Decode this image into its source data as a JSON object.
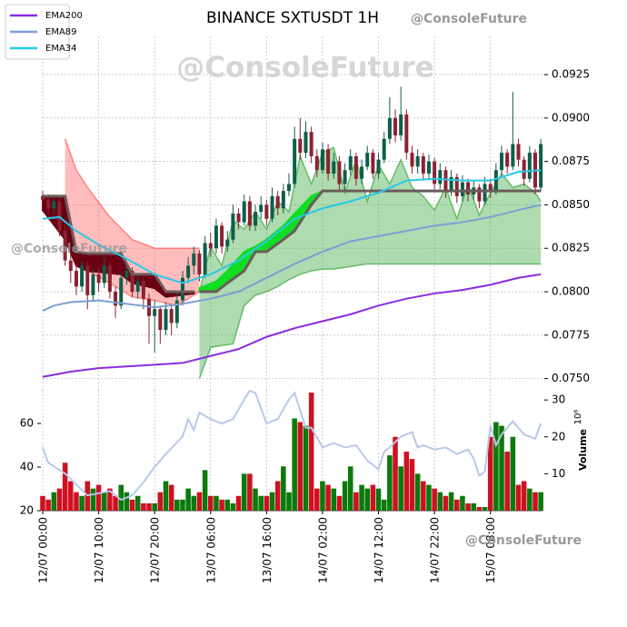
{
  "chart_data": {
    "type": "candlestick",
    "title": "BINANCE SXTUSDT 1H",
    "watermark": "@ConsoleFuture",
    "xlim": [
      0,
      89.3
    ],
    "xticks": [
      {
        "value": 0,
        "label": "12/07 00:00"
      },
      {
        "value": 10,
        "label": "12/07 10:00"
      },
      {
        "value": 20,
        "label": "12/07 20:00"
      },
      {
        "value": 30,
        "label": "13/07 06:00"
      },
      {
        "value": 40,
        "label": "13/07 16:00"
      },
      {
        "value": 50,
        "label": "14/07 02:00"
      },
      {
        "value": 60,
        "label": "14/07 12:00"
      },
      {
        "value": 70,
        "label": "14/07 22:00"
      },
      {
        "value": 80,
        "label": "15/07 08:00"
      }
    ],
    "ylim": [
      0.0743,
      0.0947
    ],
    "yticks": [
      {
        "value": 0.075,
        "label": "0.0750"
      },
      0.0775,
      {
        "value": 0.08,
        "label": "0.0800"
      },
      0.0825,
      {
        "value": 0.085,
        "label": "0.0850"
      },
      0.0875,
      {
        "value": 0.09,
        "label": "0.0900"
      },
      0.0925
    ],
    "grid": true,
    "legend": "upper left",
    "up_color": "#0e5e4a",
    "down_color": "#8b2232",
    "open": [
      0.0855,
      0.0853,
      0.0848,
      0.0852,
      0.0835,
      0.0818,
      0.0812,
      0.0803,
      0.0815,
      0.0798,
      0.081,
      0.0805,
      0.0815,
      0.08,
      0.0792,
      0.0808,
      0.0812,
      0.08,
      0.0806,
      0.0796,
      0.0786,
      0.079,
      0.0778,
      0.079,
      0.0782,
      0.0795,
      0.0808,
      0.0815,
      0.0822,
      0.081,
      0.0828,
      0.0825,
      0.0838,
      0.0826,
      0.083,
      0.0845,
      0.084,
      0.0852,
      0.0838,
      0.0846,
      0.085,
      0.0842,
      0.0855,
      0.0848,
      0.0858,
      0.0862,
      0.0888,
      0.088,
      0.0892,
      0.0878,
      0.087,
      0.0882,
      0.0868,
      0.0875,
      0.0862,
      0.087,
      0.0878,
      0.0865,
      0.0872,
      0.088,
      0.0868,
      0.0876,
      0.0888,
      0.09,
      0.089,
      0.0902,
      0.088,
      0.0872,
      0.0878,
      0.0868,
      0.0875,
      0.0862,
      0.087,
      0.0858,
      0.0866,
      0.0855,
      0.0863,
      0.0856,
      0.086,
      0.0852,
      0.0862,
      0.0858,
      0.087,
      0.088,
      0.0872,
      0.0885,
      0.0876,
      0.0865,
      0.088,
      0.086
    ],
    "high": [
      0.0858,
      0.0856,
      0.0855,
      0.0854,
      0.0838,
      0.0822,
      0.0816,
      0.0818,
      0.0817,
      0.0813,
      0.0814,
      0.082,
      0.0817,
      0.0803,
      0.0811,
      0.0816,
      0.0814,
      0.0809,
      0.0808,
      0.0799,
      0.0795,
      0.0792,
      0.0794,
      0.0793,
      0.08,
      0.0812,
      0.082,
      0.0826,
      0.0824,
      0.0832,
      0.0834,
      0.0842,
      0.084,
      0.0835,
      0.085,
      0.0848,
      0.0856,
      0.0855,
      0.085,
      0.0855,
      0.0853,
      0.086,
      0.0858,
      0.0862,
      0.0868,
      0.0895,
      0.09,
      0.0898,
      0.0895,
      0.0882,
      0.0886,
      0.0885,
      0.088,
      0.0878,
      0.0874,
      0.0882,
      0.088,
      0.0876,
      0.0884,
      0.0882,
      0.088,
      0.0892,
      0.0912,
      0.0905,
      0.0918,
      0.0905,
      0.0884,
      0.0882,
      0.088,
      0.0879,
      0.0877,
      0.0874,
      0.0872,
      0.087,
      0.0868,
      0.0867,
      0.0865,
      0.0864,
      0.0862,
      0.0866,
      0.0865,
      0.0874,
      0.0884,
      0.0882,
      0.0915,
      0.0888,
      0.0878,
      0.0884,
      0.0882,
      0.0888
    ],
    "low": [
      0.085,
      0.0845,
      0.0845,
      0.0832,
      0.0815,
      0.0805,
      0.0798,
      0.08,
      0.079,
      0.0795,
      0.08,
      0.0802,
      0.0796,
      0.0785,
      0.079,
      0.0804,
      0.0797,
      0.0796,
      0.079,
      0.077,
      0.0765,
      0.077,
      0.0775,
      0.0775,
      0.0779,
      0.0792,
      0.0805,
      0.081,
      0.0806,
      0.0808,
      0.082,
      0.0822,
      0.0822,
      0.0823,
      0.0828,
      0.0836,
      0.0838,
      0.0835,
      0.0835,
      0.0842,
      0.0838,
      0.084,
      0.0844,
      0.0845,
      0.0855,
      0.086,
      0.0876,
      0.0877,
      0.0874,
      0.0866,
      0.0868,
      0.0864,
      0.0865,
      0.0858,
      0.0858,
      0.0867,
      0.0861,
      0.0862,
      0.087,
      0.0865,
      0.0865,
      0.0874,
      0.0885,
      0.0886,
      0.0887,
      0.0876,
      0.0868,
      0.0868,
      0.0864,
      0.0865,
      0.0858,
      0.0859,
      0.0854,
      0.0855,
      0.0851,
      0.0852,
      0.0852,
      0.0853,
      0.0848,
      0.085,
      0.0854,
      0.0856,
      0.0867,
      0.0868,
      0.087,
      0.0872,
      0.0861,
      0.0863,
      0.0856,
      0.0858
    ],
    "close": [
      0.0853,
      0.0848,
      0.0852,
      0.0835,
      0.0818,
      0.0812,
      0.0803,
      0.0815,
      0.0798,
      0.081,
      0.0805,
      0.0815,
      0.08,
      0.0792,
      0.0808,
      0.0812,
      0.08,
      0.0806,
      0.0796,
      0.0786,
      0.079,
      0.0778,
      0.079,
      0.0782,
      0.0795,
      0.0808,
      0.0815,
      0.0822,
      0.081,
      0.0828,
      0.0825,
      0.0838,
      0.0826,
      0.083,
      0.0845,
      0.084,
      0.0852,
      0.0838,
      0.0846,
      0.085,
      0.0842,
      0.0855,
      0.0848,
      0.0858,
      0.0862,
      0.0888,
      0.088,
      0.0892,
      0.0878,
      0.087,
      0.0882,
      0.0868,
      0.0875,
      0.0862,
      0.087,
      0.0878,
      0.0865,
      0.0872,
      0.088,
      0.0868,
      0.0876,
      0.0888,
      0.09,
      0.089,
      0.0902,
      0.088,
      0.0872,
      0.0878,
      0.0868,
      0.0875,
      0.0862,
      0.087,
      0.0858,
      0.0866,
      0.0855,
      0.0863,
      0.0856,
      0.086,
      0.0852,
      0.0862,
      0.0858,
      0.087,
      0.088,
      0.0872,
      0.0885,
      0.0876,
      0.0865,
      0.088,
      0.086,
      0.0885
    ],
    "series": [
      {
        "name": "EMA200",
        "color": "#8a2be2",
        "x": [
          0,
          5,
          10,
          20,
          25,
          30,
          35,
          40,
          45,
          50,
          55,
          60,
          65,
          70,
          75,
          80,
          85,
          89
        ],
        "values": [
          0.0751,
          0.0754,
          0.0756,
          0.0758,
          0.0759,
          0.0763,
          0.0767,
          0.0774,
          0.0779,
          0.0783,
          0.0787,
          0.0792,
          0.0796,
          0.0799,
          0.0801,
          0.0804,
          0.0808,
          0.081
        ]
      },
      {
        "name": "EMA89",
        "color": "#7b9fd4",
        "x": [
          0,
          2,
          5,
          10,
          15,
          20,
          25,
          30,
          35,
          40,
          45,
          50,
          55,
          60,
          65,
          70,
          75,
          80,
          85,
          89
        ],
        "values": [
          0.0789,
          0.0792,
          0.0794,
          0.0795,
          0.0793,
          0.0791,
          0.0793,
          0.0796,
          0.08,
          0.0808,
          0.0816,
          0.0823,
          0.0829,
          0.0832,
          0.0835,
          0.0838,
          0.084,
          0.0843,
          0.0847,
          0.085
        ]
      },
      {
        "name": "EMA34",
        "color": "#29c8e6",
        "x": [
          0,
          3,
          6,
          10,
          15,
          20,
          25,
          30,
          35,
          40,
          45,
          50,
          55,
          60,
          65,
          70,
          75,
          80,
          85,
          89
        ],
        "values": [
          0.0842,
          0.0843,
          0.0835,
          0.0827,
          0.0819,
          0.081,
          0.0805,
          0.081,
          0.0818,
          0.0829,
          0.0842,
          0.0848,
          0.0852,
          0.0857,
          0.0864,
          0.0865,
          0.0864,
          0.0864,
          0.0869,
          0.087
        ]
      }
    ],
    "cloud": [
      {
        "color": "#ff6b6b",
        "x": [
          4,
          6,
          8,
          12,
          16,
          20,
          24,
          28
        ],
        "upper": [
          0.0888,
          0.087,
          0.086,
          0.0843,
          0.083,
          0.0825,
          0.0825,
          0.0825
        ],
        "lower": [
          0.0846,
          0.0821,
          0.0812,
          0.0805,
          0.0797,
          0.0795,
          0.0792,
          0.08
        ]
      },
      {
        "color": "#4caf50",
        "x": [
          28,
          30,
          32,
          34,
          36,
          38,
          40,
          42,
          44,
          46,
          48,
          50,
          52,
          54,
          56,
          58,
          60,
          62,
          64,
          66,
          68,
          70,
          72,
          74,
          76,
          78,
          80,
          82,
          84,
          86,
          88,
          89
        ],
        "upper": [
          0.08,
          0.0826,
          0.0815,
          0.0841,
          0.0836,
          0.0846,
          0.0836,
          0.0852,
          0.0846,
          0.0878,
          0.0862,
          0.088,
          0.0883,
          0.0857,
          0.0876,
          0.0852,
          0.0873,
          0.0862,
          0.0876,
          0.086,
          0.0855,
          0.0847,
          0.086,
          0.0842,
          0.0862,
          0.0844,
          0.0857,
          0.0868,
          0.086,
          0.0862,
          0.0857,
          0.0852
        ],
        "lower": [
          0.075,
          0.0768,
          0.0769,
          0.077,
          0.0792,
          0.0798,
          0.08,
          0.0803,
          0.0807,
          0.081,
          0.0812,
          0.0813,
          0.0813,
          0.0814,
          0.0815,
          0.0816,
          0.0816,
          0.0816,
          0.0816,
          0.0816,
          0.0816,
          0.0816,
          0.0816,
          0.0816,
          0.0816,
          0.0816,
          0.0816,
          0.0816,
          0.0816,
          0.0816,
          0.0816,
          0.0816
        ]
      }
    ],
    "trend": [
      {
        "color": "#6b0012",
        "x": [
          0,
          4,
          6,
          8,
          14,
          16,
          20,
          22,
          27
        ],
        "line": [
          0.0855,
          0.0855,
          0.0823,
          0.0822,
          0.0822,
          0.081,
          0.081,
          0.08,
          0.08
        ],
        "edge": [
          0.0847,
          0.083,
          0.0815,
          0.0812,
          0.081,
          0.0805,
          0.0802,
          0.0797,
          0.0799
        ]
      },
      {
        "color": "#11dd22",
        "x": [
          28,
          31,
          33,
          36,
          38,
          40,
          43,
          45,
          48,
          50,
          89
        ],
        "line": [
          0.08,
          0.08,
          0.0805,
          0.0812,
          0.0823,
          0.0823,
          0.083,
          0.0835,
          0.085,
          0.0858,
          0.0858
        ],
        "edge": [
          0.0802,
          0.0806,
          0.0812,
          0.0823,
          0.0826,
          0.083,
          0.0838,
          0.0845,
          0.0855,
          0.0858,
          0.0858
        ]
      }
    ],
    "trend_line_color": "#6b5b5b",
    "lower_panel": {
      "ylim": [
        20,
        75
      ],
      "yticks": [
        20,
        40,
        60
      ],
      "y2lim": [
        0,
        32.5
      ],
      "y2ticks": [
        10,
        20,
        30
      ],
      "y2label": "Volume",
      "y2exponent": "10⁶",
      "volume_up_color": "#0a7a0a",
      "volume_down_color": "#d01020",
      "volume": [
        4,
        3,
        5,
        6,
        13,
        8,
        5,
        4,
        8,
        6,
        7,
        5,
        6,
        4,
        7,
        5,
        3,
        4,
        2,
        2,
        2,
        5,
        8,
        7,
        3,
        3,
        6,
        4,
        5,
        11,
        4,
        4,
        3,
        3,
        2,
        4,
        10,
        10,
        6,
        4,
        4,
        5,
        8,
        12,
        5,
        25,
        24,
        23,
        32,
        6,
        8,
        7,
        6,
        4,
        8,
        12,
        5,
        7,
        6,
        7,
        6,
        3,
        15,
        20,
        12,
        16,
        14,
        10,
        8,
        7,
        6,
        5,
        4,
        5,
        3,
        4,
        2,
        2,
        1,
        1,
        20,
        24,
        23,
        16,
        20,
        7,
        8,
        6,
        5,
        5
      ],
      "line": {
        "color": "#b8c8e8",
        "x": [
          0,
          1,
          4,
          8,
          12,
          14,
          16,
          18,
          20,
          22,
          25,
          26,
          27,
          28,
          30,
          32,
          34,
          36,
          37,
          38,
          40,
          42,
          44,
          45,
          47,
          48,
          50,
          52,
          54,
          56,
          58,
          60,
          61,
          62,
          64,
          66,
          67,
          68,
          70,
          72,
          74,
          76,
          77,
          78,
          79,
          80,
          81,
          82,
          84,
          86,
          88,
          89
        ],
        "values": [
          49,
          42,
          37,
          27,
          29,
          25,
          27,
          33,
          40,
          46,
          54,
          62,
          57,
          65,
          62,
          60,
          62,
          71,
          75,
          74,
          60,
          62,
          71,
          74,
          58,
          58,
          49,
          51,
          49,
          50,
          43,
          39,
          47,
          49,
          54,
          56,
          49,
          50,
          48,
          49,
          46,
          48,
          44,
          36,
          38,
          59,
          50,
          55,
          61,
          55,
          53,
          60
        ]
      }
    }
  }
}
